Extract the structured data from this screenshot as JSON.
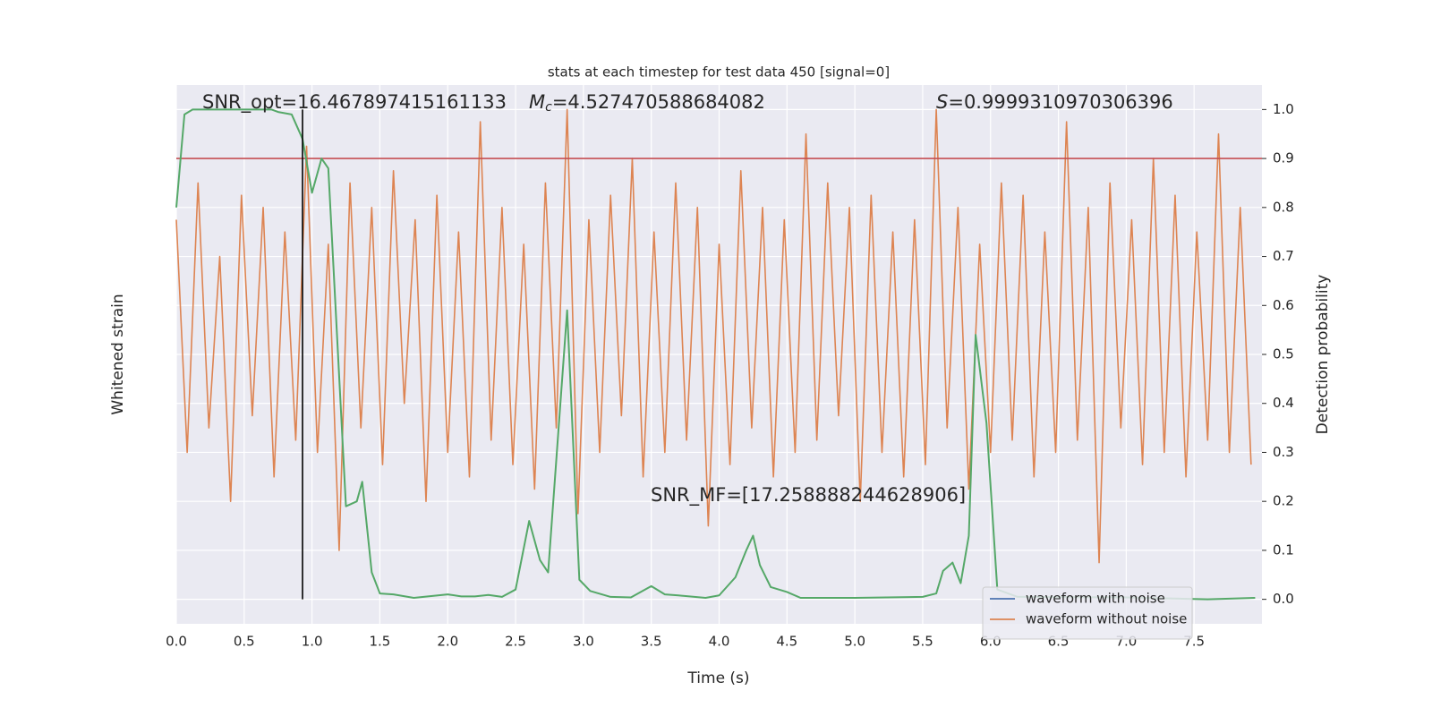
{
  "chart_data": {
    "type": "line",
    "title": "stats at each timestep for test data 450 [signal=0]",
    "xlabel": "Time (s)",
    "ylabel": "Whitened strain",
    "y2label": "Detection probability",
    "xlim": [
      0,
      8
    ],
    "xticks": [
      {
        "value": 0,
        "label": "0.0"
      },
      0.5,
      {
        "value": 1,
        "label": "1.0"
      },
      1.5,
      {
        "value": 2,
        "label": "2.0"
      },
      2.5,
      {
        "value": 3,
        "label": "3.0"
      },
      3.5,
      {
        "value": 4,
        "label": "4.0"
      },
      4.5,
      {
        "value": 5,
        "label": "5.0"
      },
      5.5,
      {
        "value": 6,
        "label": "6.0"
      },
      6.5,
      {
        "value": 7,
        "label": "7.0"
      },
      7.5
    ],
    "ylim": [
      -1.2,
      1
    ],
    "y2lim": [
      -0.05,
      1.05
    ],
    "y2ticks": [
      {
        "value": 0,
        "label": "0.0"
      },
      0.1,
      0.2,
      0.3,
      0.4,
      0.5,
      0.6,
      0.7,
      0.8,
      0.9,
      {
        "value": 1,
        "label": "1.0"
      }
    ],
    "grid": true,
    "legend": "lower right",
    "series": [
      {
        "name": "waveform with noise",
        "color": "#4c72b0",
        "x": [],
        "values": []
      },
      {
        "name": "waveform without noise",
        "color": "#dd8452",
        "x": [
          0,
          0.08,
          0.16,
          0.24,
          0.32,
          0.4,
          0.48,
          0.56,
          0.64,
          0.72,
          0.8,
          0.88,
          0.96,
          1.04,
          1.12,
          1.2,
          1.28,
          1.36,
          1.44,
          1.52,
          1.6,
          1.68,
          1.76,
          1.84,
          1.92,
          2,
          2.08,
          2.16,
          2.24,
          2.32,
          2.4,
          2.48,
          2.56,
          2.64,
          2.72,
          2.8,
          2.88,
          2.96,
          3.04,
          3.12,
          3.2,
          3.28,
          3.36,
          3.44,
          3.52,
          3.6,
          3.68,
          3.76,
          3.84,
          3.92,
          4,
          4.08,
          4.16,
          4.24,
          4.32,
          4.4,
          4.48,
          4.56,
          4.64,
          4.72,
          4.8,
          4.88,
          4.96,
          5.04,
          5.12,
          5.2,
          5.28,
          5.36,
          5.44,
          5.52,
          5.6,
          5.68,
          5.76,
          5.84,
          5.92,
          6,
          6.08,
          6.16,
          6.24,
          6.32,
          6.4,
          6.48,
          6.56,
          6.64,
          6.72,
          6.8,
          6.88,
          6.96,
          7.04,
          7.12,
          7.2,
          7.28,
          7.36,
          7.44,
          7.52,
          7.6,
          7.68,
          7.76,
          7.84,
          7.92
        ],
        "values": [
          0.45,
          -0.5,
          0.6,
          -0.4,
          0.3,
          -0.7,
          0.55,
          -0.35,
          0.5,
          -0.6,
          0.4,
          -0.45,
          0.75,
          -0.5,
          0.35,
          -0.9,
          0.6,
          -0.4,
          0.5,
          -0.55,
          0.65,
          -0.3,
          0.45,
          -0.7,
          0.55,
          -0.5,
          0.4,
          -0.6,
          0.85,
          -0.45,
          0.5,
          -0.55,
          0.35,
          -0.65,
          0.6,
          -0.4,
          0.9,
          -0.75,
          0.45,
          -0.5,
          0.55,
          -0.35,
          0.7,
          -0.6,
          0.4,
          -0.5,
          0.6,
          -0.45,
          0.5,
          -0.8,
          0.35,
          -0.55,
          0.65,
          -0.4,
          0.5,
          -0.6,
          0.45,
          -0.5,
          0.8,
          -0.45,
          0.6,
          -0.35,
          0.5,
          -0.7,
          0.55,
          -0.5,
          0.4,
          -0.6,
          0.45,
          -0.55,
          0.9,
          -0.4,
          0.5,
          -0.65,
          0.35,
          -0.5,
          0.6,
          -0.45,
          0.55,
          -0.6,
          0.4,
          -0.5,
          0.85,
          -0.45,
          0.5,
          -0.95,
          0.6,
          -0.4,
          0.45,
          -0.55,
          0.7,
          -0.5,
          0.55,
          -0.6,
          0.4,
          -0.45,
          0.8,
          -0.5,
          0.5,
          -0.55
        ]
      },
      {
        "color": "#55a868",
        "axis": "y2",
        "x": [
          0,
          0.06,
          0.12,
          0.3,
          0.5,
          0.7,
          0.75,
          0.85,
          0.93,
          1.0,
          1.07,
          1.12,
          1.25,
          1.33,
          1.37,
          1.44,
          1.5,
          1.6,
          1.75,
          2.0,
          2.1,
          2.2,
          2.3,
          2.4,
          2.5,
          2.6,
          2.68,
          2.74,
          2.88,
          2.97,
          3.05,
          3.2,
          3.35,
          3.5,
          3.6,
          3.7,
          3.9,
          4.0,
          4.12,
          4.2,
          4.25,
          4.3,
          4.38,
          4.5,
          4.6,
          5.0,
          5.5,
          5.6,
          5.65,
          5.72,
          5.78,
          5.84,
          5.89,
          5.97,
          6.05,
          6.2,
          7.0,
          7.6,
          7.95
        ],
        "values": [
          0.8,
          0.99,
          1.0,
          1.0,
          1.0,
          1.0,
          0.995,
          0.99,
          0.94,
          0.83,
          0.9,
          0.88,
          0.19,
          0.2,
          0.24,
          0.055,
          0.012,
          0.01,
          0.003,
          0.01,
          0.006,
          0.006,
          0.009,
          0.005,
          0.02,
          0.16,
          0.08,
          0.055,
          0.59,
          0.04,
          0.017,
          0.005,
          0.004,
          0.027,
          0.01,
          0.008,
          0.003,
          0.008,
          0.045,
          0.1,
          0.13,
          0.07,
          0.025,
          0.015,
          0.003,
          0.003,
          0.005,
          0.012,
          0.058,
          0.075,
          0.033,
          0.13,
          0.54,
          0.36,
          0.02,
          0.005,
          0.004,
          0.0,
          0.003
        ]
      }
    ],
    "hlines": [
      {
        "value": 0.9,
        "color": "#c44e52",
        "axis": "y2"
      }
    ],
    "vlines": [
      {
        "value": 0.93,
        "color": "#000000",
        "span": [
          0,
          1
        ]
      }
    ],
    "annotations": [
      {
        "text": "SNR_opt=16.467897415161133"
      },
      {
        "symbol": "M",
        "subscript": "c",
        "text": "=4.527470588684082"
      },
      {
        "symbol": "S",
        "text": "=0.9999310970306396"
      },
      {
        "text": "SNR_MF=[17.258888244628906]"
      }
    ]
  }
}
